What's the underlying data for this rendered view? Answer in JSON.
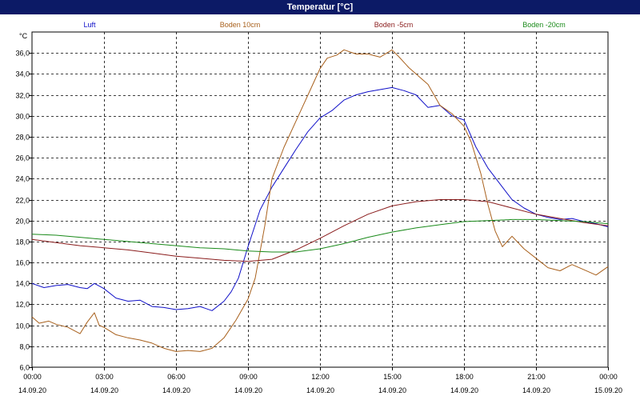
{
  "title": "Temperatur [°C]",
  "chart_data": {
    "type": "line",
    "title": "Temperatur [°C]",
    "ylabel": "°C",
    "ylim": [
      6,
      38
    ],
    "yticks": [
      "6,0",
      "8,0",
      "10,0",
      "12,0",
      "14,0",
      "16,0",
      "18,0",
      "20,0",
      "22,0",
      "24,0",
      "26,0",
      "28,0",
      "30,0",
      "32,0",
      "34,0",
      "36,0"
    ],
    "xlim": [
      0,
      24
    ],
    "xticks": [
      {
        "time": "00:00",
        "date": "14.09.20"
      },
      {
        "time": "03:00",
        "date": "14.09.20"
      },
      {
        "time": "06:00",
        "date": "14.09.20"
      },
      {
        "time": "09:00",
        "date": "14.09.20"
      },
      {
        "time": "12:00",
        "date": "14.09.20"
      },
      {
        "time": "15:00",
        "date": "14.09.20"
      },
      {
        "time": "18:00",
        "date": "14.09.20"
      },
      {
        "time": "21:00",
        "date": "14.09.20"
      },
      {
        "time": "00:00",
        "date": "15.09.20"
      }
    ],
    "grid": true,
    "legend_position": "top",
    "series": [
      {
        "name": "Luft",
        "color": "#1010c8",
        "x": [
          0,
          0.5,
          1,
          1.5,
          2,
          2.3,
          2.6,
          3,
          3.5,
          4,
          4.5,
          5,
          5.5,
          6,
          6.5,
          7,
          7.5,
          8,
          8.3,
          8.6,
          9,
          9.5,
          10,
          10.5,
          11,
          11.5,
          12,
          12.5,
          13,
          13.5,
          14,
          14.5,
          15,
          15.5,
          16,
          16.5,
          17,
          17.5,
          18,
          18.5,
          19,
          19.5,
          20,
          20.5,
          21,
          21.5,
          22,
          22.5,
          23,
          23.5,
          24
        ],
        "y": [
          14.0,
          13.6,
          13.8,
          13.9,
          13.6,
          13.5,
          14.0,
          13.5,
          12.6,
          12.3,
          12.4,
          11.8,
          11.7,
          11.5,
          11.6,
          11.8,
          11.4,
          12.3,
          13.2,
          14.5,
          17.5,
          21.0,
          23.2,
          25.0,
          26.8,
          28.5,
          29.8,
          30.5,
          31.5,
          32.0,
          32.3,
          32.5,
          32.7,
          32.4,
          32.0,
          30.8,
          31.0,
          30.0,
          29.6,
          27.0,
          25.0,
          23.5,
          22.0,
          21.2,
          20.6,
          20.3,
          20.1,
          20.2,
          19.9,
          19.7,
          19.4
        ]
      },
      {
        "name": "Boden 10cm",
        "color": "#a8601c",
        "x": [
          0,
          0.3,
          0.7,
          1,
          1.5,
          2,
          2.3,
          2.6,
          2.8,
          3,
          3.5,
          4,
          4.5,
          5,
          5.5,
          6,
          6.5,
          7,
          7.5,
          8,
          8.5,
          9,
          9.3,
          9.7,
          10,
          10.5,
          11,
          11.3,
          11.7,
          12,
          12.3,
          12.7,
          13,
          13.5,
          14,
          14.5,
          15,
          15.3,
          15.7,
          16,
          16.5,
          17,
          17.5,
          18,
          18.3,
          18.7,
          19,
          19.3,
          19.6,
          20,
          20.5,
          21,
          21.5,
          22,
          22.5,
          23,
          23.5,
          24
        ],
        "y": [
          10.8,
          10.2,
          10.4,
          10.1,
          9.8,
          9.2,
          10.3,
          11.2,
          10.0,
          9.8,
          9.1,
          8.8,
          8.6,
          8.3,
          7.8,
          7.5,
          7.6,
          7.5,
          7.8,
          8.8,
          10.5,
          12.5,
          14.5,
          19.5,
          24.0,
          27.0,
          29.5,
          31.0,
          33.0,
          34.5,
          35.5,
          35.8,
          36.3,
          35.9,
          35.9,
          35.6,
          36.3,
          35.6,
          34.6,
          34.0,
          33.0,
          31.0,
          30.2,
          29.0,
          27.5,
          24.5,
          21.5,
          19.0,
          17.5,
          18.5,
          17.3,
          16.4,
          15.5,
          15.2,
          15.8,
          15.3,
          14.8,
          15.6
        ]
      },
      {
        "name": "Boden -5cm",
        "color": "#8a1c1c",
        "x": [
          0,
          1,
          2,
          3,
          4,
          5,
          6,
          7,
          8,
          9,
          10,
          11,
          12,
          13,
          14,
          15,
          16,
          17,
          18,
          19,
          20,
          21,
          22,
          23,
          24
        ],
        "y": [
          18.2,
          17.9,
          17.6,
          17.4,
          17.2,
          16.9,
          16.6,
          16.4,
          16.2,
          16.1,
          16.3,
          17.2,
          18.3,
          19.5,
          20.6,
          21.4,
          21.8,
          22.0,
          22.0,
          21.8,
          21.2,
          20.6,
          20.2,
          19.8,
          19.5
        ]
      },
      {
        "name": "Boden -20cm",
        "color": "#1a8a1a",
        "x": [
          0,
          1,
          2,
          3,
          4,
          5,
          6,
          7,
          8,
          9,
          10,
          11,
          12,
          13,
          14,
          15,
          16,
          17,
          18,
          19,
          20,
          21,
          22,
          23,
          24
        ],
        "y": [
          18.7,
          18.6,
          18.4,
          18.2,
          18.0,
          17.8,
          17.6,
          17.4,
          17.3,
          17.1,
          17.0,
          17.0,
          17.3,
          17.8,
          18.4,
          18.9,
          19.3,
          19.6,
          19.9,
          20.0,
          20.1,
          20.1,
          20.0,
          19.9,
          19.7
        ]
      }
    ]
  }
}
